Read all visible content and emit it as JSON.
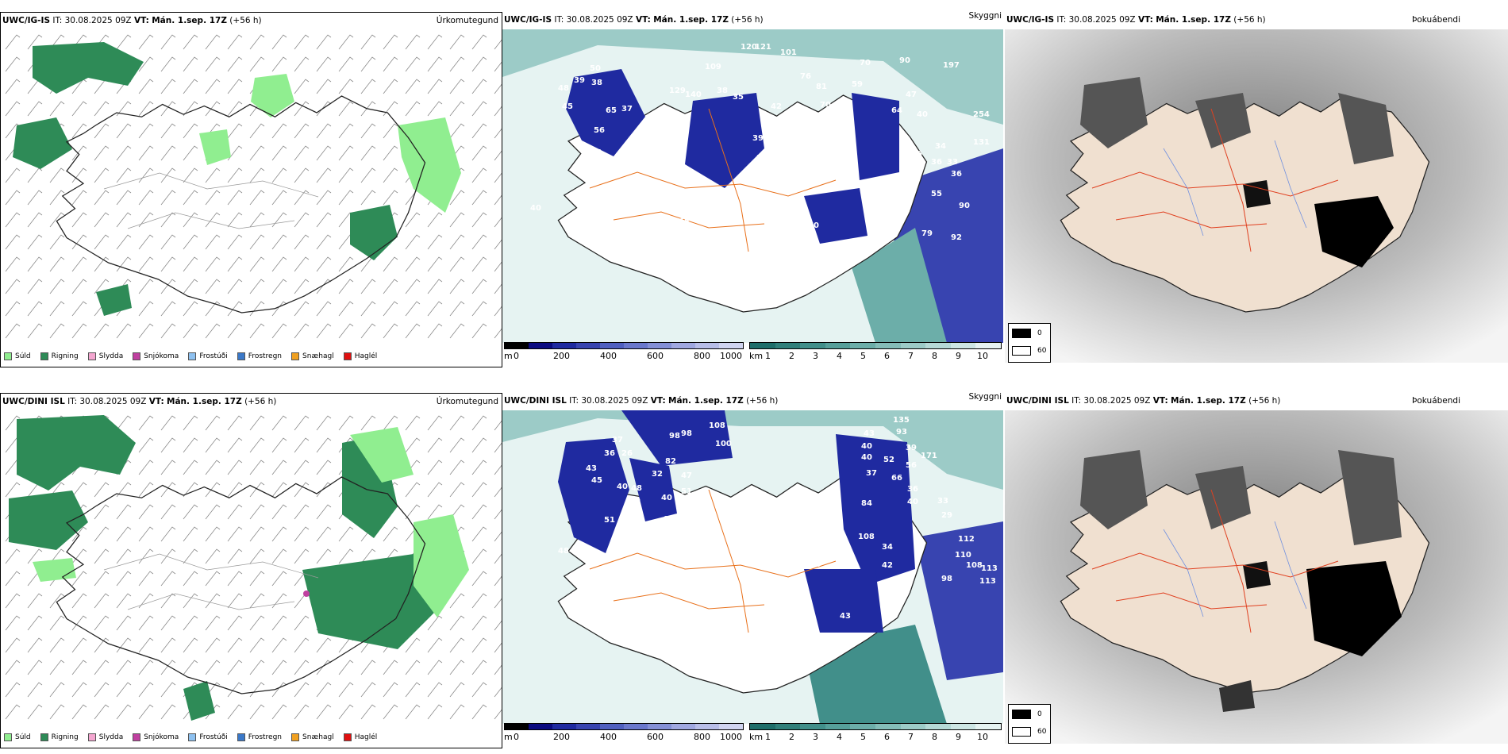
{
  "rows": [
    {
      "model": "UWC/IG-IS",
      "it_label": "IT:",
      "it_value": "30.08.2025 09Z",
      "vt_label": "VT:",
      "vt_value": "Mán. 1.sep. 17Z",
      "lead": "(+56 h)"
    },
    {
      "model": "UWC/DINI ISL",
      "it_label": "IT:",
      "it_value": "30.08.2025 09Z",
      "vt_label": "VT:",
      "vt_value": "Mán. 1.sep. 17Z",
      "lead": "(+56 h)"
    }
  ],
  "panel_types": {
    "precip": "Úrkomutegund",
    "cloud": "Skyggni",
    "fog": "Þokuábendi"
  },
  "precip_legend": [
    {
      "label": "Súld",
      "color": "#90ee90"
    },
    {
      "label": "Rigning",
      "color": "#2e8b57"
    },
    {
      "label": "Slydda",
      "color": "#f4a6d0"
    },
    {
      "label": "Snjókoma",
      "color": "#c040a0"
    },
    {
      "label": "Frostúði",
      "color": "#8ec1f0"
    },
    {
      "label": "Frostregn",
      "color": "#3a78c8"
    },
    {
      "label": "Snæhagl",
      "color": "#f0a020"
    },
    {
      "label": "Haglél",
      "color": "#e01010"
    }
  ],
  "cloud_scale": {
    "unit": "m",
    "ticks": [
      "0",
      "200",
      "400",
      "600",
      "800",
      "1000"
    ],
    "colors": [
      "#000000",
      "#0a0a80",
      "#1f2aa0",
      "#3844b0",
      "#5060c0",
      "#6a78cc",
      "#8490d6",
      "#a0a8e0",
      "#b8bee8",
      "#d0d4f0"
    ]
  },
  "vis_scale": {
    "unit": "km",
    "ticks": [
      "1",
      "2",
      "3",
      "4",
      "5",
      "6",
      "7",
      "8",
      "9",
      "10"
    ],
    "colors": [
      "#1d6e6a",
      "#2f7f7a",
      "#418f8a",
      "#569f9a",
      "#6caea9",
      "#84bdb8",
      "#9ccbc7",
      "#b5d9d6",
      "#cde6e4",
      "#e6f3f2"
    ]
  },
  "fog_legend": [
    {
      "label": "0",
      "color": "#000000"
    },
    {
      "label": "60",
      "color": "#ffffff"
    }
  ],
  "cloud_labels_top": [
    "120",
    "121",
    "101",
    "109",
    "129",
    "50",
    "39",
    "38",
    "48",
    "45",
    "65",
    "37",
    "38",
    "140",
    "38",
    "35",
    "76",
    "81",
    "70",
    "59",
    "70",
    "90",
    "197",
    "254",
    "131",
    "47",
    "40",
    "64",
    "42",
    "39",
    "33",
    "35",
    "42",
    "33",
    "49",
    "52",
    "35",
    "60",
    "41",
    "56",
    "54",
    "68",
    "54",
    "70",
    "66",
    "33",
    "34",
    "56",
    "36",
    "33",
    "36",
    "55",
    "79",
    "90",
    "92",
    "40"
  ],
  "cloud_labels_bottom": [
    "135",
    "93",
    "108",
    "98",
    "98",
    "100",
    "43",
    "40",
    "40",
    "37",
    "82",
    "47",
    "51",
    "37",
    "36",
    "26",
    "43",
    "45",
    "40",
    "48",
    "50",
    "45",
    "32",
    "40",
    "70",
    "90",
    "51",
    "34",
    "58",
    "48",
    "65",
    "54",
    "29",
    "72",
    "108",
    "84",
    "34",
    "42",
    "33",
    "29",
    "40",
    "36",
    "112",
    "110",
    "108",
    "113",
    "113",
    "98",
    "171",
    "56",
    "66",
    "52",
    "39",
    "43"
  ]
}
